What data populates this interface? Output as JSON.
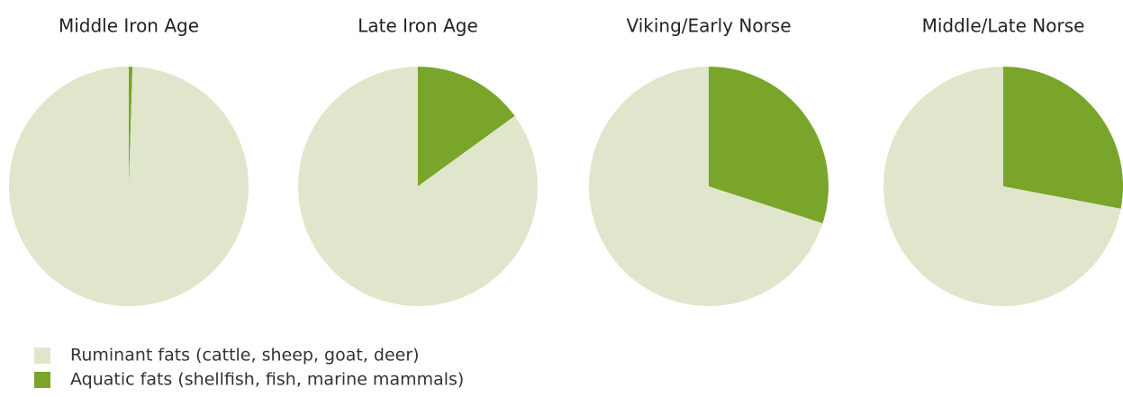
{
  "chart_data": [
    {
      "type": "pie",
      "title": "Middle Iron Age",
      "values": [
        99.5,
        0.5
      ]
    },
    {
      "type": "pie",
      "title": "Late Iron Age",
      "values": [
        85,
        15
      ]
    },
    {
      "type": "pie",
      "title": "Viking/Early Norse",
      "values": [
        70,
        30
      ]
    },
    {
      "type": "pie",
      "title": "Middle/Late Norse",
      "values": [
        72,
        28
      ]
    }
  ],
  "legend": [
    {
      "name": "Ruminant fats (cattle, sheep, goat, deer)",
      "color": "#dfe6cb"
    },
    {
      "name": "Aquatic fats (shellfish, fish, marine mammals)",
      "color": "#79a52a"
    }
  ]
}
